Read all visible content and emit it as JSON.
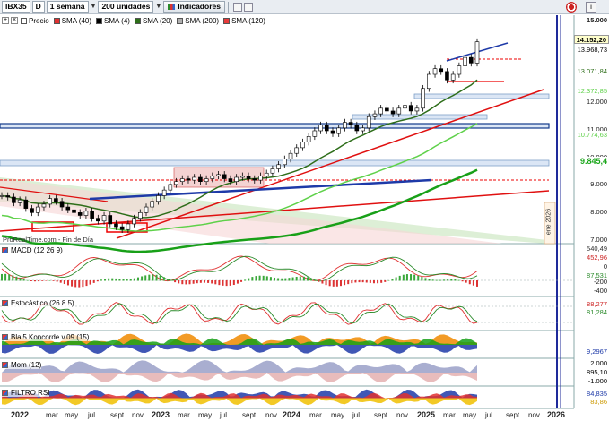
{
  "toolbar": {
    "symbol": "IBX35",
    "mode": "D",
    "period": "1 semana",
    "units": "200 unidades",
    "indicators_label": "Indicadores",
    "plus_icon": "plus-icon",
    "cross_icon": "crosshair-icon"
  },
  "legend": [
    {
      "label": "Precio",
      "color": "#ffffff"
    },
    {
      "label": "SMA (40)",
      "color": "#e03030"
    },
    {
      "label": "SMA (4)",
      "color": "#000000"
    },
    {
      "label": "SMA (20)",
      "color": "#2e6e1a"
    },
    {
      "label": "SMA (200)",
      "color": "#b0b0b0"
    },
    {
      "label": "SMA (120)",
      "color": "#e83a3a"
    }
  ],
  "watermark": "ProRealTime.com - Fin de Día",
  "vertical_label": "ene 2026",
  "price_axis": {
    "ticks": [
      "15.000",
      "12.000",
      "11.000",
      "10.000",
      "9.000",
      "8.000",
      "7.000"
    ],
    "tags": [
      {
        "text": "14.152,20",
        "bg": "#ffffcc",
        "fg": "#000000"
      },
      {
        "text": "13.968,73",
        "bg": "#ffffff",
        "fg": "#000000"
      },
      {
        "text": "13.071,84",
        "bg": "#ffffff",
        "fg": "#2e6e1a"
      },
      {
        "text": "12.372,85",
        "bg": "#ffffff",
        "fg": "#5fd14a"
      },
      {
        "text": "10.774,63",
        "bg": "#ffffff",
        "fg": "#5fd14a"
      },
      {
        "text": "9.845,4",
        "bg": "#ffffff",
        "fg": "#1aa61a"
      }
    ]
  },
  "panels": {
    "macd": {
      "title": "MACD (12 26 9)",
      "tags": [
        "540,49",
        "452,96",
        "87,531"
      ],
      "ticks": [
        "0",
        "-200",
        "-400"
      ]
    },
    "stoch": {
      "title": "Estocástico (26 8 5)",
      "tags": [
        "88,277",
        "81,284"
      ]
    },
    "koncorde": {
      "title": "Blai5 Koncorde v.09 (15)",
      "tags": [
        "9,2967"
      ]
    },
    "mom": {
      "title": "Mom (12)",
      "tags": [
        "2.000",
        "895,10",
        "-1.000"
      ]
    },
    "rsi": {
      "title": "FILTRO RSI",
      "tags": [
        "84,835",
        "83,86"
      ]
    }
  },
  "x_axis": [
    {
      "label": "2022",
      "year": true
    },
    {
      "label": "mar",
      "year": false
    },
    {
      "label": "may",
      "year": false
    },
    {
      "label": "jul",
      "year": false
    },
    {
      "label": "sept",
      "year": false
    },
    {
      "label": "nov",
      "year": false
    },
    {
      "label": "2023",
      "year": true
    },
    {
      "label": "mar",
      "year": false
    },
    {
      "label": "may",
      "year": false
    },
    {
      "label": "jul",
      "year": false
    },
    {
      "label": "sept",
      "year": false
    },
    {
      "label": "nov",
      "year": false
    },
    {
      "label": "2024",
      "year": true
    },
    {
      "label": "mar",
      "year": false
    },
    {
      "label": "may",
      "year": false
    },
    {
      "label": "jul",
      "year": false
    },
    {
      "label": "sept",
      "year": false
    },
    {
      "label": "nov",
      "year": false
    },
    {
      "label": "2025",
      "year": true
    },
    {
      "label": "mar",
      "year": false
    },
    {
      "label": "may",
      "year": false
    },
    {
      "label": "jul",
      "year": false
    },
    {
      "label": "sept",
      "year": false
    },
    {
      "label": "nov",
      "year": false
    },
    {
      "label": "2026",
      "year": true
    }
  ],
  "chart_data": {
    "type": "line",
    "title": "IBX35",
    "ylim": [
      7000,
      15000
    ],
    "price_weekly": [
      8700,
      8650,
      8450,
      8550,
      8250,
      8100,
      8300,
      8400,
      8600,
      8500,
      8300,
      8200,
      8100,
      8000,
      8150,
      7900,
      7800,
      8000,
      7700,
      7600,
      7500,
      7700,
      7900,
      8100,
      8300,
      8500,
      8700,
      8900,
      9100,
      9200,
      9300,
      9250,
      9350,
      9200,
      9300,
      9400,
      9450,
      9300,
      9200,
      9350,
      9400,
      9300,
      9250,
      9400,
      9500,
      9650,
      9800,
      10000,
      10200,
      10400,
      10600,
      10800,
      11000,
      11200,
      11000,
      10900,
      11100,
      11300,
      11200,
      11000,
      11100,
      11500,
      11600,
      11800,
      11700,
      11600,
      11800,
      11900,
      11700,
      11800,
      12500,
      13000,
      13200,
      13100,
      12800,
      13000,
      13300,
      13600,
      13400,
      14152
    ]
  }
}
